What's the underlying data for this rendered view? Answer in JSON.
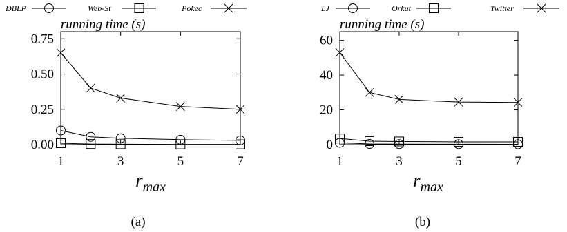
{
  "chart_data": [
    {
      "type": "line",
      "caption": "(a)",
      "ylabel": "running time (s)",
      "xlabel": "r",
      "xlabel_sub": "max",
      "x": [
        1,
        2,
        3,
        5,
        7
      ],
      "xticks": [
        1,
        3,
        5,
        7
      ],
      "xlim": [
        1,
        7
      ],
      "yticks": [
        "0.00",
        "0.25",
        "0.50",
        "0.75"
      ],
      "ylim": [
        0,
        0.8
      ],
      "grid": false,
      "legend_position": "top",
      "series": [
        {
          "name": "DBLP",
          "marker": "circle",
          "values": [
            0.1,
            0.055,
            0.045,
            0.035,
            0.03
          ]
        },
        {
          "name": "Web-St",
          "marker": "square",
          "values": [
            0.01,
            0.004,
            0.003,
            0.002,
            0.002
          ]
        },
        {
          "name": "Pokec",
          "marker": "cross",
          "values": [
            0.65,
            0.4,
            0.33,
            0.27,
            0.25
          ]
        }
      ]
    },
    {
      "type": "line",
      "caption": "(b)",
      "ylabel": "running time (s)",
      "xlabel": "r",
      "xlabel_sub": "max",
      "x": [
        1,
        2,
        3,
        5,
        7
      ],
      "xticks": [
        1,
        3,
        5,
        7
      ],
      "xlim": [
        1,
        7
      ],
      "yticks": [
        "0",
        "20",
        "40",
        "60"
      ],
      "ylim": [
        0,
        65
      ],
      "grid": false,
      "legend_position": "top",
      "series": [
        {
          "name": "LJ",
          "marker": "circle",
          "values": [
            1.0,
            0.4,
            0.3,
            0.25,
            0.2
          ]
        },
        {
          "name": "Orkut",
          "marker": "square",
          "values": [
            3.5,
            2.0,
            1.8,
            1.6,
            1.6
          ]
        },
        {
          "name": "Twitter",
          "marker": "cross",
          "values": [
            53,
            30,
            26,
            24.5,
            24.3
          ]
        }
      ]
    }
  ]
}
